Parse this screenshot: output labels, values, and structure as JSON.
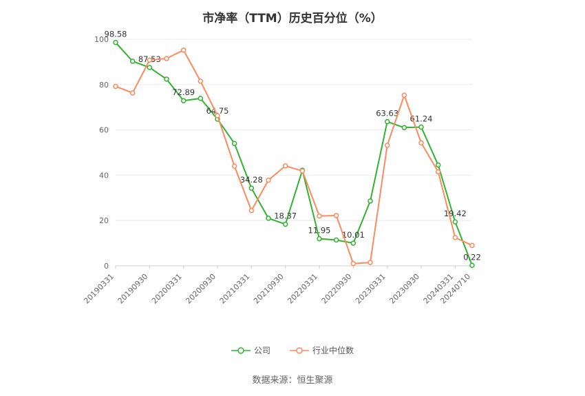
{
  "source": "数据来源：恒生聚源",
  "chart_data": {
    "type": "line",
    "title": "市净率（TTM）历史百分位（%）",
    "xlabel": "",
    "ylabel": "",
    "ylim": [
      0,
      100
    ],
    "yticks": [
      0,
      20,
      40,
      60,
      80,
      100
    ],
    "grid": "horizontal",
    "legend_position": "bottom",
    "categories": [
      "20190331",
      "20190630",
      "20190930",
      "20191231",
      "20200331",
      "20200630",
      "20200930",
      "20201231",
      "20210331",
      "20210630",
      "20210930",
      "20211231",
      "20220331",
      "20220630",
      "20220930",
      "20221231",
      "20230331",
      "20230630",
      "20230930",
      "20231231",
      "20240331",
      "20240710"
    ],
    "tick_indices": [
      0,
      2,
      4,
      6,
      8,
      10,
      12,
      14,
      16,
      18,
      20,
      21
    ],
    "tick_labels": [
      "20190331",
      "20190930",
      "20200331",
      "20200930",
      "20210331",
      "20210930",
      "20220331",
      "20220930",
      "20230331",
      "20230930",
      "20240331",
      "20240710"
    ],
    "series": [
      {
        "name": "公司",
        "color": "#2fb32f",
        "values": [
          98.58,
          90.3,
          87.53,
          82.4,
          72.89,
          73.9,
          64.75,
          54.0,
          34.28,
          21.0,
          18.37,
          42.2,
          11.95,
          11.4,
          10.01,
          28.6,
          63.63,
          61.0,
          61.24,
          44.5,
          19.42,
          0.22
        ],
        "point_labels": [
          {
            "index": 0,
            "text": "98.58"
          },
          {
            "index": 2,
            "text": "87.53"
          },
          {
            "index": 4,
            "text": "72.89"
          },
          {
            "index": 6,
            "text": "64.75"
          },
          {
            "index": 8,
            "text": "34.28"
          },
          {
            "index": 10,
            "text": "18.37"
          },
          {
            "index": 12,
            "text": "11.95"
          },
          {
            "index": 14,
            "text": "10.01"
          },
          {
            "index": 16,
            "text": "63.63"
          },
          {
            "index": 18,
            "text": "61.24"
          },
          {
            "index": 20,
            "text": "19.42"
          },
          {
            "index": 21,
            "text": "0.22"
          }
        ]
      },
      {
        "name": "行业中位数",
        "color": "#fc8a5f",
        "values": [
          79.2,
          76.3,
          90.8,
          91.5,
          95.2,
          81.5,
          66.3,
          44.0,
          24.4,
          37.8,
          44.1,
          41.9,
          22.0,
          22.2,
          1.0,
          1.5,
          53.2,
          75.3,
          54.3,
          41.5,
          12.5,
          9.0
        ],
        "point_labels": []
      }
    ]
  }
}
